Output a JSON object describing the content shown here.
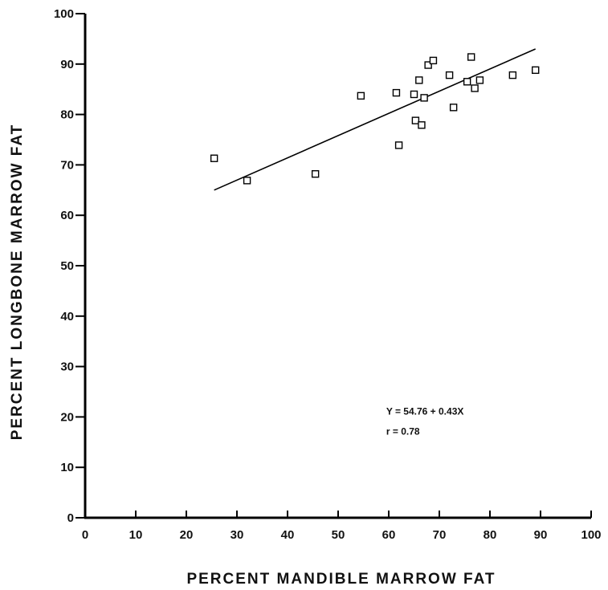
{
  "chart_data": {
    "type": "scatter",
    "title": "",
    "xlabel": "PERCENT MANDIBLE MARROW FAT",
    "ylabel": "PERCENT LONGBONE MARROW FAT",
    "xlim": [
      0,
      100
    ],
    "ylim": [
      0,
      100
    ],
    "xticks": [
      0,
      10,
      20,
      30,
      40,
      50,
      60,
      70,
      80,
      90,
      100
    ],
    "yticks": [
      0,
      10,
      20,
      30,
      40,
      50,
      60,
      70,
      80,
      90,
      100
    ],
    "grid": false,
    "marker": "open-square",
    "points": [
      {
        "x": 25.5,
        "y": 71.3
      },
      {
        "x": 32.0,
        "y": 66.9
      },
      {
        "x": 45.5,
        "y": 68.2
      },
      {
        "x": 54.5,
        "y": 83.7
      },
      {
        "x": 61.5,
        "y": 84.3
      },
      {
        "x": 62.0,
        "y": 73.9
      },
      {
        "x": 65.0,
        "y": 84.0
      },
      {
        "x": 65.3,
        "y": 78.8
      },
      {
        "x": 66.0,
        "y": 86.8
      },
      {
        "x": 66.5,
        "y": 77.9
      },
      {
        "x": 67.0,
        "y": 83.3
      },
      {
        "x": 67.8,
        "y": 89.8
      },
      {
        "x": 68.8,
        "y": 90.7
      },
      {
        "x": 72.0,
        "y": 87.8
      },
      {
        "x": 72.8,
        "y": 81.4
      },
      {
        "x": 75.5,
        "y": 86.5
      },
      {
        "x": 76.3,
        "y": 91.4
      },
      {
        "x": 77.0,
        "y": 85.2
      },
      {
        "x": 78.0,
        "y": 86.8
      },
      {
        "x": 84.5,
        "y": 87.8
      },
      {
        "x": 89.0,
        "y": 88.8
      }
    ],
    "regression_line": {
      "x1": 25.5,
      "y1": 65.0,
      "x2": 89.0,
      "y2": 93.0
    },
    "annotations": [
      {
        "text": "Y = 54.76 + 0.43X",
        "x": 59.5,
        "y": 20.5
      },
      {
        "text": "r = 0.78",
        "x": 59.5,
        "y": 16.5
      }
    ]
  }
}
